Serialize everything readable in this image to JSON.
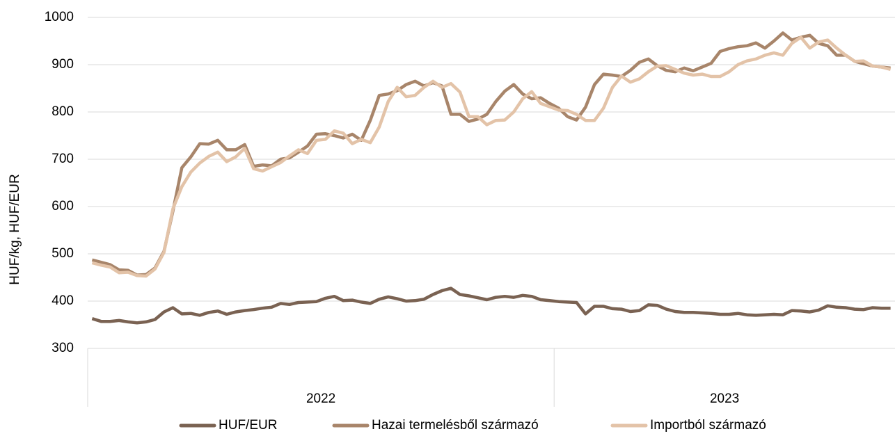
{
  "chart_data": {
    "type": "line",
    "y_label": "HUF/kg, HUF/EUR",
    "groups": [
      {
        "label": "2022",
        "size": 52
      },
      {
        "label": "2023",
        "size": 38
      }
    ],
    "ylim": [
      300,
      1000
    ],
    "yticks": [
      300,
      400,
      500,
      600,
      700,
      800,
      900,
      1000
    ],
    "grid": true,
    "legend": "bottom",
    "series": [
      {
        "name": "HUF/EUR",
        "color": "#7a6252",
        "values": [
          363,
          357,
          357,
          359,
          356,
          354,
          356,
          361,
          377,
          386,
          373,
          374,
          370,
          376,
          379,
          372,
          377,
          380,
          382,
          385,
          387,
          395,
          393,
          397,
          398,
          399,
          406,
          410,
          401,
          402,
          398,
          395,
          404,
          409,
          405,
          400,
          401,
          404,
          414,
          422,
          427,
          414,
          411,
          407,
          403,
          408,
          410,
          408,
          412,
          410,
          403,
          401,
          399,
          398,
          397,
          373,
          389,
          389,
          384,
          383,
          378,
          380,
          392,
          391,
          383,
          378,
          376,
          376,
          375,
          374,
          372,
          372,
          374,
          371,
          370,
          371,
          372,
          371,
          380,
          379,
          377,
          381,
          390,
          387,
          386,
          383,
          382,
          386,
          385,
          385
        ]
      },
      {
        "name": "Hazai termelésből származó",
        "color": "#a8856a",
        "values": [
          487,
          482,
          477,
          466,
          465,
          455,
          456,
          470,
          505,
          590,
          682,
          705,
          733,
          732,
          740,
          720,
          720,
          731,
          685,
          688,
          686,
          700,
          703,
          715,
          728,
          753,
          754,
          750,
          745,
          753,
          740,
          782,
          835,
          838,
          845,
          858,
          865,
          855,
          862,
          855,
          795,
          795,
          780,
          785,
          795,
          822,
          844,
          858,
          838,
          828,
          830,
          818,
          808,
          790,
          783,
          810,
          858,
          880,
          878,
          875,
          888,
          905,
          912,
          898,
          888,
          885,
          893,
          887,
          895,
          903,
          928,
          934,
          938,
          940,
          946,
          935,
          950,
          967,
          952,
          958,
          962,
          945,
          940,
          920,
          920,
          907,
          902,
          897,
          895,
          893
        ]
      },
      {
        "name": "Importból származó",
        "color": "#e3c3a8",
        "values": [
          481,
          476,
          472,
          460,
          461,
          454,
          453,
          468,
          503,
          595,
          642,
          673,
          692,
          706,
          715,
          695,
          705,
          723,
          680,
          675,
          684,
          693,
          707,
          720,
          712,
          740,
          742,
          760,
          755,
          733,
          742,
          735,
          768,
          822,
          852,
          832,
          835,
          852,
          865,
          852,
          860,
          842,
          790,
          790,
          773,
          782,
          783,
          800,
          828,
          843,
          818,
          811,
          804,
          803,
          795,
          782,
          782,
          808,
          852,
          876,
          863,
          870,
          885,
          897,
          898,
          890,
          882,
          878,
          880,
          875,
          875,
          885,
          900,
          908,
          912,
          920,
          925,
          920,
          945,
          958,
          935,
          948,
          952,
          935,
          920,
          907,
          908,
          897,
          895,
          890
        ]
      }
    ]
  }
}
